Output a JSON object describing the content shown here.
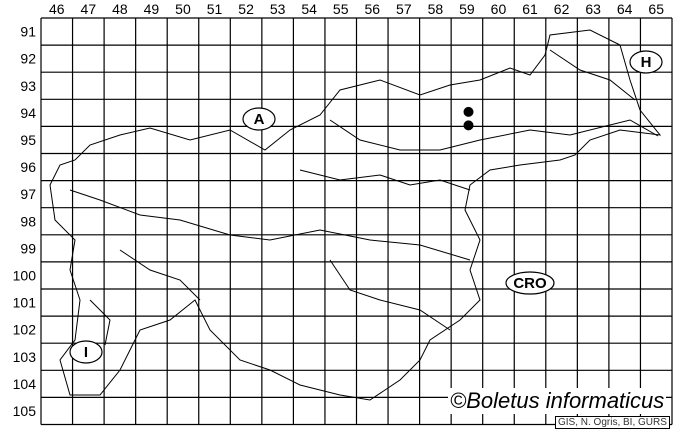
{
  "map": {
    "columns": [
      "46",
      "47",
      "48",
      "49",
      "50",
      "51",
      "52",
      "53",
      "54",
      "55",
      "56",
      "57",
      "58",
      "59",
      "60",
      "61",
      "62",
      "63",
      "64",
      "65"
    ],
    "rows": [
      "91",
      "92",
      "93",
      "94",
      "95",
      "96",
      "97",
      "98",
      "99",
      "100",
      "101",
      "102",
      "103",
      "104",
      "105"
    ],
    "country_labels": [
      {
        "text": "A",
        "name": "austria"
      },
      {
        "text": "H",
        "name": "hungary"
      },
      {
        "text": "CRO",
        "name": "croatia"
      },
      {
        "text": "I",
        "name": "italy"
      }
    ],
    "records": [
      {
        "column": "59",
        "row": "94"
      },
      {
        "column": "59",
        "row": "94.5"
      }
    ],
    "record_color": "#000000"
  },
  "copyright": "©Boletus informaticus",
  "credits": "GIS, N. Ogris, BI, GURS"
}
